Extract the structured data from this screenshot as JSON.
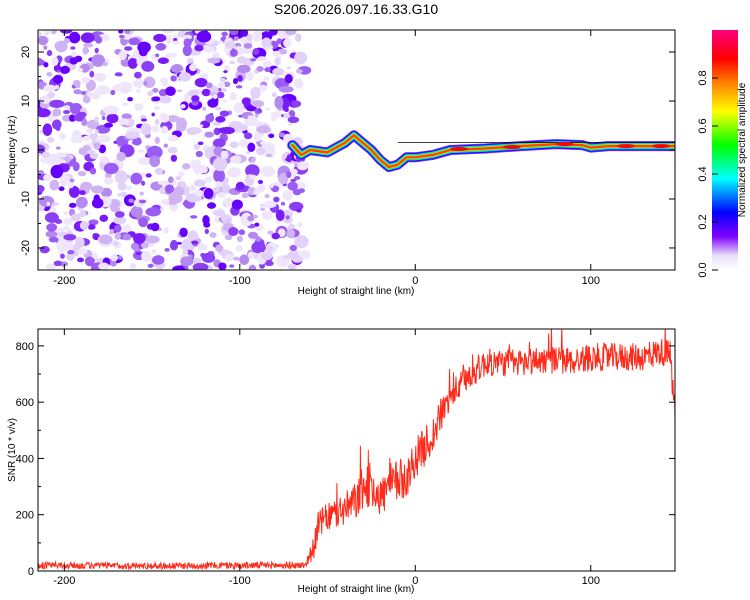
{
  "title": "S206.2026.097.16.33.G10",
  "chart_data": [
    {
      "type": "heatmap",
      "name": "spectrogram",
      "xlabel": "Height of straight line (km)",
      "ylabel": "Frequency (Hz)",
      "xlim": [
        -215,
        148
      ],
      "ylim": [
        -24.5,
        24.5
      ],
      "xticks": [
        -200,
        -100,
        0,
        100
      ],
      "xtick_labels": [
        "-200",
        "-100",
        "0",
        "100"
      ],
      "yticks": [
        -20,
        -10,
        0,
        10,
        20
      ],
      "ytick_labels": [
        "-20",
        "-10",
        "0",
        "10",
        "20"
      ],
      "noise_region_x": [
        -215,
        -63
      ],
      "signal_region_x": [
        -70,
        148
      ],
      "frequency_track": [
        {
          "x": -70,
          "f": 1.0
        },
        {
          "x": -65,
          "f": -1.0
        },
        {
          "x": -60,
          "f": 0.0
        },
        {
          "x": -50,
          "f": -0.5
        },
        {
          "x": -40,
          "f": 1.5
        },
        {
          "x": -35,
          "f": 3.0
        },
        {
          "x": -30,
          "f": 1.5
        },
        {
          "x": -25,
          "f": 0.0
        },
        {
          "x": -20,
          "f": -2.0
        },
        {
          "x": -15,
          "f": -3.5
        },
        {
          "x": -10,
          "f": -3.0
        },
        {
          "x": -5,
          "f": -1.5
        },
        {
          "x": 0,
          "f": -1.5
        },
        {
          "x": 10,
          "f": -1.0
        },
        {
          "x": 20,
          "f": 0.0
        },
        {
          "x": 40,
          "f": 0.3
        },
        {
          "x": 60,
          "f": 0.8
        },
        {
          "x": 80,
          "f": 1.2
        },
        {
          "x": 95,
          "f": 1.0
        },
        {
          "x": 100,
          "f": 0.5
        },
        {
          "x": 110,
          "f": 0.8
        },
        {
          "x": 148,
          "f": 0.8
        }
      ],
      "colorbar": {
        "label": "Normalized spectral amplitude",
        "range": [
          0.0,
          1.0
        ],
        "ticks": [
          0.0,
          0.2,
          0.4,
          0.6,
          0.8
        ],
        "tick_labels": [
          "0.0",
          "0.2",
          "0.4",
          "0.6",
          "0.8"
        ],
        "colors": [
          "#ffffff",
          "#e8e0f8",
          "#7f00ff",
          "#0000ff",
          "#00ffff",
          "#00ff00",
          "#ffff00",
          "#ff7f00",
          "#ff0000",
          "#ff0080"
        ]
      }
    },
    {
      "type": "line",
      "name": "snr",
      "xlabel": "Height of straight line (km)",
      "ylabel": "SNR (10 * v/v)",
      "xlim": [
        -215,
        148
      ],
      "ylim": [
        0,
        860
      ],
      "xticks": [
        -200,
        -100,
        0,
        100
      ],
      "xtick_labels": [
        "-200",
        "-100",
        "0",
        "100"
      ],
      "yticks": [
        0,
        200,
        400,
        600,
        800
      ],
      "ytick_labels": [
        "0",
        "200",
        "400",
        "600",
        "800"
      ],
      "color": "#ff2a1a",
      "series": [
        {
          "name": "SNR",
          "x": [
            -215,
            -150,
            -100,
            -63,
            -58,
            -55,
            -50,
            -45,
            -40,
            -35,
            -30,
            -25,
            -20,
            -15,
            -10,
            -5,
            0,
            5,
            10,
            15,
            20,
            30,
            40,
            50,
            60,
            70,
            80,
            90,
            100,
            110,
            120,
            130,
            140,
            145,
            148
          ],
          "values": [
            20,
            18,
            20,
            20,
            80,
            170,
            190,
            205,
            220,
            240,
            290,
            310,
            260,
            300,
            320,
            330,
            400,
            440,
            480,
            560,
            620,
            690,
            740,
            740,
            740,
            750,
            750,
            745,
            760,
            760,
            760,
            760,
            780,
            770,
            560
          ],
          "noise_amplitude": [
            12,
            12,
            12,
            12,
            40,
            50,
            50,
            60,
            60,
            70,
            80,
            80,
            70,
            80,
            80,
            70,
            70,
            70,
            70,
            60,
            50,
            50,
            50,
            50,
            50,
            50,
            50,
            50,
            50,
            50,
            50,
            50,
            50,
            50,
            50
          ]
        }
      ]
    }
  ]
}
